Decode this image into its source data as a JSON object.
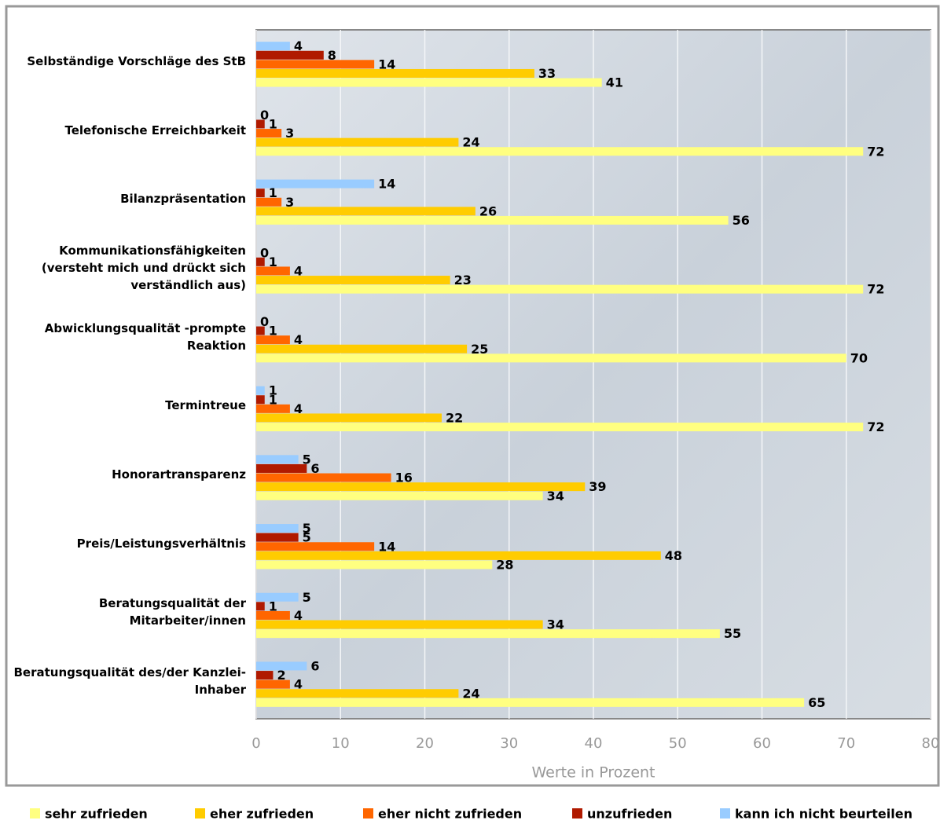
{
  "chart_data": {
    "type": "bar",
    "orientation": "horizontal",
    "xlabel": "Werte in Prozent",
    "categories": [
      "Selbständige Vorschläge des StB",
      "Telefonische Erreichbarkeit",
      "Bilanzpräsentation",
      "Kommunikationsfähigkeiten (versteht mich und drückt sich verständlich aus)",
      "Abwicklungsqualität  -prompte Reaktion",
      "Termintreue",
      "Honorartransparenz",
      "Preis/Leistungsverhältnis",
      "Beratungsqualität der Mitarbeiter/innen",
      "Beratungsqualität des/der Kanzlei-Inhaber"
    ],
    "series": [
      {
        "name": "sehr zufrieden",
        "color": "#ffff80",
        "values": [
          41,
          72,
          56,
          72,
          70,
          72,
          34,
          28,
          55,
          65
        ]
      },
      {
        "name": "eher zufrieden",
        "color": "#ffcc00",
        "values": [
          33,
          24,
          26,
          23,
          25,
          22,
          39,
          48,
          34,
          24
        ]
      },
      {
        "name": "eher nicht zufrieden",
        "color": "#ff6600",
        "values": [
          14,
          3,
          3,
          4,
          4,
          4,
          16,
          14,
          4,
          4
        ]
      },
      {
        "name": "unzufrieden",
        "color": "#b01a00",
        "values": [
          8,
          1,
          1,
          1,
          1,
          1,
          6,
          5,
          1,
          2
        ]
      },
      {
        "name": "kann ich nicht beurteilen",
        "color": "#99ccff",
        "values": [
          4,
          0,
          14,
          0,
          0,
          1,
          5,
          5,
          5,
          6
        ]
      }
    ],
    "xlim": [
      0,
      80
    ],
    "xticks": [
      0,
      10,
      20,
      30,
      40,
      50,
      60,
      70,
      80
    ],
    "grid": true,
    "legend": "bottom"
  }
}
